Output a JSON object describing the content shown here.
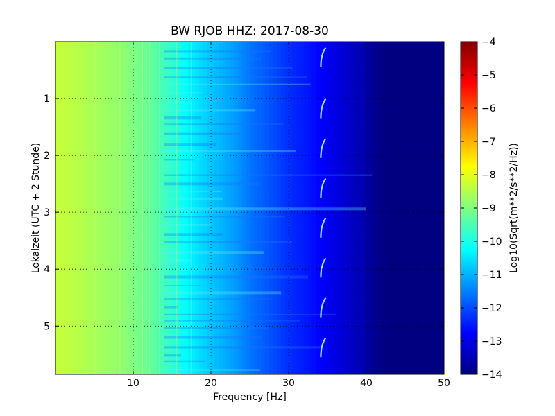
{
  "chart_data": {
    "type": "heatmap",
    "title": "BW RJOB HHZ: 2017-08-30",
    "xlabel": "Frequency [Hz]",
    "ylabel": "Lokalzeit (UTC + 2 Stunde)",
    "xlim": [
      0,
      50
    ],
    "ylim": [
      0,
      5.85
    ],
    "y_inverted": true,
    "xticks": [
      10,
      20,
      30,
      40,
      50
    ],
    "xtick_labels": [
      "10",
      "20",
      "30",
      "40",
      "50"
    ],
    "yticks": [
      1,
      2,
      3,
      4,
      5
    ],
    "ytick_labels": [
      "1",
      "2",
      "3",
      "4",
      "5"
    ],
    "grid": true,
    "colormap": "jet",
    "colorbar": {
      "label": "Log10(Sqrt(m**2/s**2/Hz))",
      "range": [
        -14,
        -4
      ],
      "ticks": [
        -4,
        -5,
        -6,
        -7,
        -8,
        -9,
        -10,
        -11,
        -12,
        -13,
        -14
      ],
      "tick_labels": [
        "−4",
        "−5",
        "−6",
        "−7",
        "−8",
        "−9",
        "−10",
        "−11",
        "−12",
        "−13",
        "−14"
      ]
    },
    "spectral_profile": {
      "frequency_hz": [
        0,
        2,
        5,
        8,
        10,
        13,
        15,
        17,
        20,
        23,
        25,
        28,
        30,
        33,
        35,
        38,
        40,
        41,
        43,
        50
      ],
      "level": [
        -8.3,
        -8.4,
        -8.6,
        -8.8,
        -9.0,
        -9.4,
        -9.8,
        -10.3,
        -10.8,
        -11.2,
        -11.6,
        -12.0,
        -12.3,
        -12.6,
        -12.9,
        -13.3,
        -13.6,
        -13.85,
        -14,
        -14
      ]
    },
    "narrowband_line_hz": 34.5,
    "narrowband_line_times_h": [
      0.3,
      1.2,
      1.9,
      2.6,
      3.3,
      4.0,
      4.7,
      5.4
    ]
  }
}
